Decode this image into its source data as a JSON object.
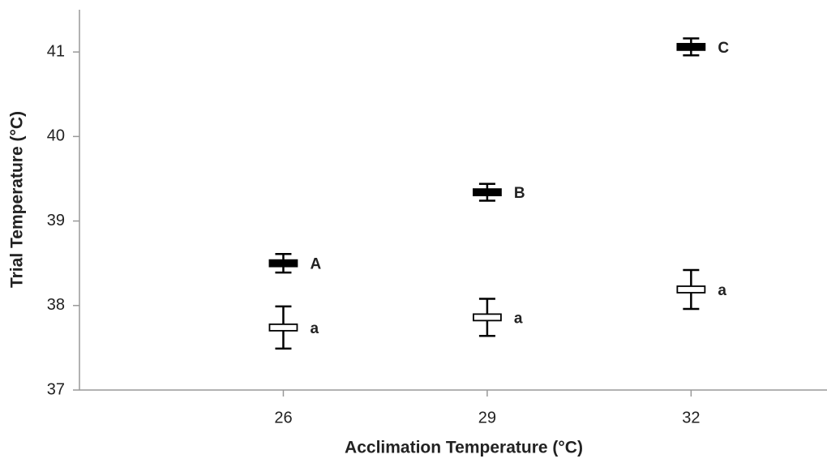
{
  "chart_data": {
    "type": "errorbar",
    "x_label": "Acclimation Temperature (°C)",
    "y_label": "Trial Temperature (°C)",
    "xlim": [
      23,
      34
    ],
    "xticks": [
      26,
      29,
      32
    ],
    "ylim": [
      37,
      41.5
    ],
    "yticks": [
      37,
      38,
      39,
      40,
      41
    ],
    "x": [
      26,
      29,
      32
    ],
    "series": [
      {
        "color": "#000000",
        "values": [
          38.5,
          39.34,
          41.06
        ],
        "errors": [
          0.11,
          0.1,
          0.1
        ],
        "labels": [
          "A",
          "B",
          "C"
        ]
      },
      {
        "color": "#ffffff",
        "values": [
          37.74,
          37.86,
          38.19
        ],
        "errors": [
          0.25,
          0.22,
          0.23
        ],
        "labels": [
          "a",
          "a",
          "a"
        ]
      }
    ]
  }
}
